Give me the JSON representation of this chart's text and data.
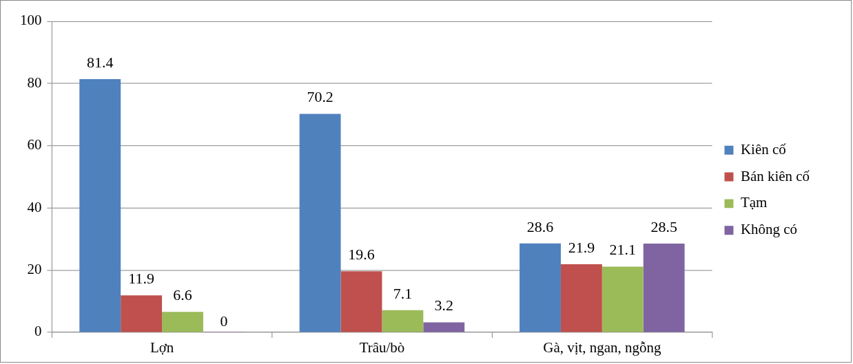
{
  "chart_data": {
    "type": "bar",
    "categories": [
      "Lợn",
      "Trâu/bò",
      "Gà, vịt, ngan, ngỗng"
    ],
    "series": [
      {
        "name": "Kiên cố",
        "color": "#4f81bd",
        "values": [
          81.4,
          70.2,
          28.6
        ]
      },
      {
        "name": "Bán kiên cố",
        "color": "#c0504d",
        "values": [
          11.9,
          19.6,
          21.9
        ]
      },
      {
        "name": "Tạm",
        "color": "#9bbb59",
        "values": [
          6.6,
          7.1,
          21.1
        ]
      },
      {
        "name": "Không có",
        "color": "#8064a2",
        "values": [
          0,
          3.2,
          28.5
        ]
      }
    ],
    "ylim": [
      0,
      100
    ],
    "yticks": [
      0,
      20,
      40,
      60,
      80,
      100
    ],
    "grid": "y",
    "legend": "right",
    "data_labels": true
  }
}
